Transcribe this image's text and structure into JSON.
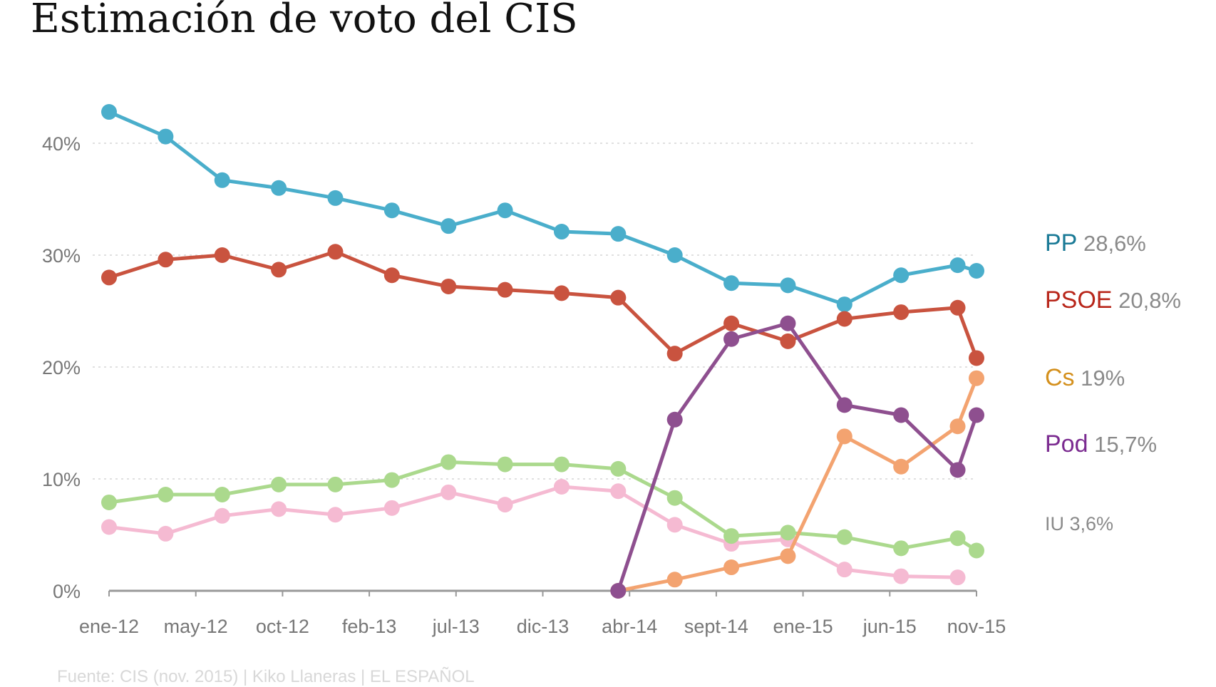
{
  "title": "Estimación de voto del CIS",
  "source": "Fuente: CIS (nov. 2015) | Kiko Llaneras | EL ESPAÑOL",
  "chart_data": {
    "type": "line",
    "title": "Estimación de voto del CIS",
    "x_unit": "month",
    "x": [
      "ene-12",
      "abr-12",
      "jul-12",
      "oct-12",
      "ene-13",
      "abr-13",
      "jul-13",
      "oct-13",
      "ene-14",
      "abr-14",
      "jul-14",
      "oct-14",
      "ene-15",
      "abr-15",
      "jul-15",
      "oct-15",
      "nov-15"
    ],
    "x_months_from_ene12": [
      0,
      3,
      6,
      9,
      12,
      15,
      18,
      21,
      24,
      27,
      30,
      33,
      36,
      39,
      42,
      45,
      46
    ],
    "xticks": [
      "ene-12",
      "may-12",
      "oct-12",
      "feb-13",
      "jul-13",
      "dic-13",
      "abr-14",
      "sept-14",
      "ene-15",
      "jun-15",
      "nov-15"
    ],
    "yticks": [
      "0%",
      "10%",
      "20%",
      "30%",
      "40%"
    ],
    "ylim": [
      0,
      45
    ],
    "grid": true,
    "series": [
      {
        "name": "PP",
        "end_label": "28,6%",
        "color": "#4aaecb",
        "label_color": "#1a7a96",
        "values": [
          42.8,
          40.6,
          36.7,
          36.0,
          35.1,
          34.0,
          32.6,
          34.0,
          32.1,
          31.9,
          30.0,
          27.5,
          27.3,
          25.6,
          28.2,
          29.1,
          28.6
        ]
      },
      {
        "name": "PSOE",
        "end_label": "20,8%",
        "color": "#c9533f",
        "label_color": "#b8261a",
        "values": [
          28.0,
          29.6,
          30.0,
          28.7,
          30.3,
          28.2,
          27.2,
          26.9,
          26.6,
          26.2,
          21.2,
          23.9,
          22.3,
          24.3,
          24.9,
          25.3,
          20.8
        ]
      },
      {
        "name": "IU",
        "end_label": "3,6%",
        "color": "#abd98d",
        "label_color": "#8a8a8a",
        "values": [
          7.9,
          8.6,
          8.6,
          9.5,
          9.5,
          9.9,
          11.5,
          11.3,
          11.3,
          10.9,
          8.3,
          4.9,
          5.2,
          4.8,
          3.8,
          4.7,
          3.6
        ]
      },
      {
        "color": "#f5bad2",
        "values": [
          5.7,
          5.1,
          6.7,
          7.3,
          6.8,
          7.4,
          8.8,
          7.7,
          9.3,
          8.9,
          5.9,
          4.2,
          4.6,
          1.9,
          1.3,
          1.2,
          null
        ]
      },
      {
        "name": "Cs",
        "end_label": "19%",
        "color": "#f3a370",
        "label_color": "#d4901d",
        "values": [
          null,
          null,
          null,
          null,
          null,
          null,
          null,
          null,
          null,
          0,
          1.0,
          2.1,
          3.1,
          13.8,
          11.1,
          14.7,
          19.0
        ]
      },
      {
        "name": "Pod",
        "end_label": "15,7%",
        "color": "#8e4f8f",
        "label_color": "#7b2b90",
        "values": [
          null,
          null,
          null,
          null,
          null,
          null,
          null,
          null,
          null,
          0,
          15.3,
          22.5,
          23.9,
          16.6,
          15.7,
          10.8,
          15.7
        ]
      }
    ]
  }
}
